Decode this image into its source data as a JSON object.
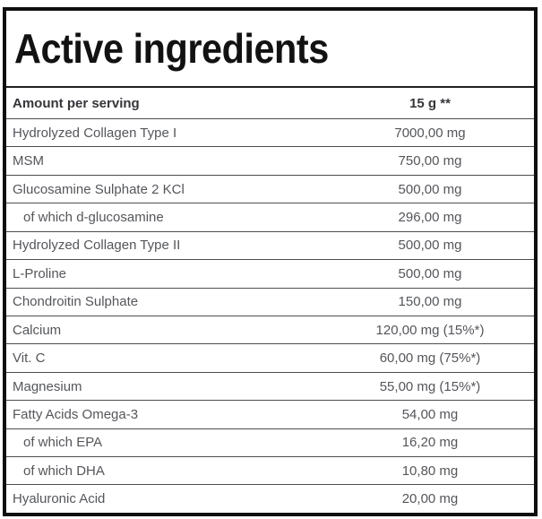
{
  "title": "Active ingredients",
  "table": {
    "header": {
      "name": "Amount per serving",
      "value": "15 g **"
    },
    "rows": [
      {
        "name": "Hydrolyzed Collagen Type I",
        "value": "7000,00 mg",
        "indent": false
      },
      {
        "name": "MSM",
        "value": "750,00 mg",
        "indent": false
      },
      {
        "name": "Glucosamine Sulphate 2 KCl",
        "value": "500,00 mg",
        "indent": false
      },
      {
        "name": "of which d-glucosamine",
        "value": "296,00 mg",
        "indent": true
      },
      {
        "name": "Hydrolyzed Collagen Type II",
        "value": "500,00 mg",
        "indent": false
      },
      {
        "name": "L-Proline",
        "value": "500,00 mg",
        "indent": false
      },
      {
        "name": "Chondroitin Sulphate",
        "value": "150,00 mg",
        "indent": false
      },
      {
        "name": "Calcium",
        "value": "120,00 mg (15%*)",
        "indent": false
      },
      {
        "name": "Vit. C",
        "value": "60,00 mg (75%*)",
        "indent": false
      },
      {
        "name": "Magnesium",
        "value": "55,00 mg (15%*)",
        "indent": false
      },
      {
        "name": "Fatty Acids Omega-3",
        "value": "54,00 mg",
        "indent": false
      },
      {
        "name": "of which EPA",
        "value": "16,20 mg",
        "indent": true
      },
      {
        "name": "of which DHA",
        "value": "10,80 mg",
        "indent": true
      },
      {
        "name": "Hyaluronic Acid",
        "value": "20,00 mg",
        "indent": false
      }
    ]
  },
  "colors": {
    "outer_border": "#0f0f0f",
    "divider": "#4d4d4d",
    "title_text": "#121212",
    "header_text": "#35363a",
    "row_text": "#54565a",
    "background": "#ffffff"
  }
}
